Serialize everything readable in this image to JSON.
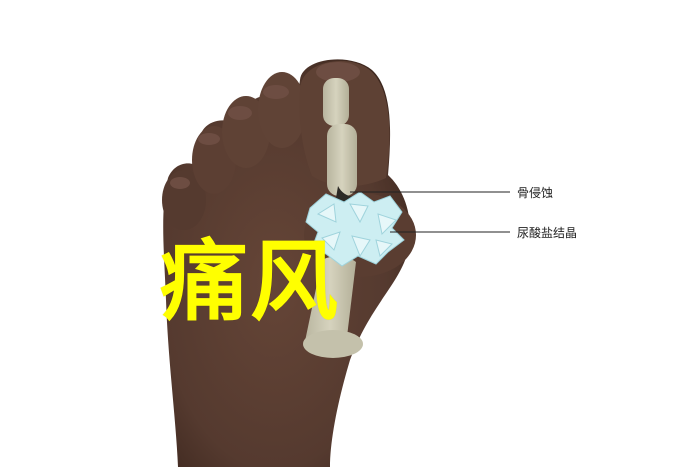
{
  "title": "痛风",
  "labels": {
    "bone_erosion": "骨侵蚀",
    "urate_crystals": "尿酸盐结晶"
  },
  "colors": {
    "skin": "#5a3c31",
    "skin_dark": "#3f2820",
    "nail": "#6d4d42",
    "bone": "#c9c6b0",
    "crystal": "#cdeef2",
    "title": "#ffff00",
    "leader": "#222222"
  },
  "icons": {
    "illustration": "gout-foot-illustration"
  }
}
